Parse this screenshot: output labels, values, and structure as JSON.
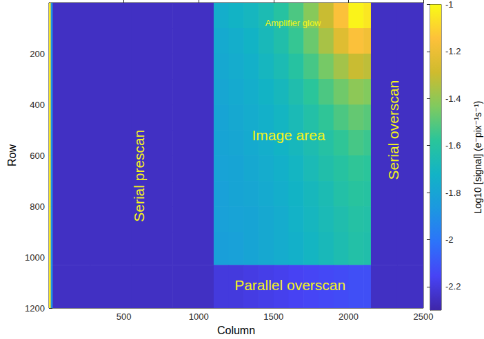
{
  "chart_data": {
    "type": "heatmap",
    "x_label": "Column",
    "y_label": "Row",
    "xlim": [
      0,
      2500
    ],
    "xticks": [
      500,
      1000,
      1500,
      2000,
      2500
    ],
    "ylim": [
      0,
      1200
    ],
    "yticks": [
      200,
      400,
      600,
      800,
      1000,
      1200
    ],
    "x_edges": [
      0,
      12,
      25,
      275,
      550,
      825,
      1100,
      1200,
      1300,
      1400,
      1500,
      1600,
      1700,
      1800,
      1900,
      2000,
      2100,
      2150,
      2325,
      2500
    ],
    "y_edges": [
      0,
      100,
      200,
      300,
      400,
      500,
      600,
      700,
      800,
      900,
      1030,
      1200
    ],
    "z": [
      [
        -1.05,
        -1.9,
        -2.25,
        -2.25,
        -2.25,
        -2.25,
        -1.75,
        -1.72,
        -1.7,
        -1.66,
        -1.6,
        -1.52,
        -1.42,
        -1.3,
        -1.15,
        -1.02,
        -1.05,
        -2.25,
        -2.25
      ],
      [
        -1.05,
        -1.9,
        -2.25,
        -2.25,
        -2.25,
        -2.25,
        -1.77,
        -1.75,
        -1.72,
        -1.68,
        -1.63,
        -1.56,
        -1.47,
        -1.36,
        -1.24,
        -1.15,
        -1.18,
        -2.25,
        -2.25
      ],
      [
        -1.05,
        -1.9,
        -2.25,
        -2.25,
        -2.25,
        -2.25,
        -1.78,
        -1.76,
        -1.74,
        -1.7,
        -1.66,
        -1.6,
        -1.53,
        -1.45,
        -1.37,
        -1.3,
        -1.32,
        -2.25,
        -2.25
      ],
      [
        -1.05,
        -1.9,
        -2.25,
        -2.25,
        -2.25,
        -2.25,
        -1.79,
        -1.77,
        -1.75,
        -1.72,
        -1.69,
        -1.64,
        -1.58,
        -1.52,
        -1.46,
        -1.41,
        -1.43,
        -2.25,
        -2.25
      ],
      [
        -1.05,
        -1.9,
        -2.25,
        -2.25,
        -2.25,
        -2.25,
        -1.8,
        -1.78,
        -1.76,
        -1.74,
        -1.71,
        -1.67,
        -1.62,
        -1.57,
        -1.52,
        -1.48,
        -1.5,
        -2.25,
        -2.25
      ],
      [
        -1.05,
        -1.9,
        -2.25,
        -2.25,
        -2.25,
        -2.25,
        -1.8,
        -1.79,
        -1.77,
        -1.75,
        -1.72,
        -1.69,
        -1.65,
        -1.61,
        -1.57,
        -1.53,
        -1.55,
        -2.25,
        -2.25
      ],
      [
        -1.05,
        -1.9,
        -2.25,
        -2.25,
        -2.25,
        -2.25,
        -1.81,
        -1.8,
        -1.78,
        -1.76,
        -1.74,
        -1.71,
        -1.67,
        -1.63,
        -1.6,
        -1.57,
        -1.58,
        -2.25,
        -2.25
      ],
      [
        -1.05,
        -1.9,
        -2.25,
        -2.25,
        -2.25,
        -2.25,
        -1.82,
        -1.8,
        -1.79,
        -1.77,
        -1.75,
        -1.72,
        -1.69,
        -1.66,
        -1.62,
        -1.59,
        -1.6,
        -2.25,
        -2.25
      ],
      [
        -1.05,
        -1.9,
        -2.25,
        -2.25,
        -2.25,
        -2.25,
        -1.82,
        -1.81,
        -1.8,
        -1.78,
        -1.76,
        -1.73,
        -1.7,
        -1.67,
        -1.64,
        -1.61,
        -1.62,
        -2.25,
        -2.25
      ],
      [
        -1.05,
        -1.9,
        -2.25,
        -2.25,
        -2.25,
        -2.25,
        -1.83,
        -1.82,
        -1.8,
        -1.78,
        -1.76,
        -1.74,
        -1.71,
        -1.68,
        -1.65,
        -1.62,
        -1.63,
        -2.25,
        -2.25
      ],
      [
        -1.05,
        -1.9,
        -2.25,
        -2.25,
        -2.25,
        -2.25,
        -2.2,
        -2.2,
        -2.19,
        -2.18,
        -2.17,
        -2.16,
        -2.15,
        -2.14,
        -2.13,
        -2.12,
        -2.12,
        -2.25,
        -2.25
      ]
    ],
    "colorbar": {
      "label": "Log10 [signal] (e⁻pix⁻¹s⁻¹)",
      "range": [
        -2.3,
        -1
      ],
      "ticks": [
        -1,
        -1.2,
        -1.4,
        -1.6,
        -1.8,
        -2,
        -2.2
      ]
    },
    "annotations": [
      {
        "text": "Amplifier glow",
        "x": 1630,
        "y": 80
      },
      {
        "text": "Serial prescan",
        "x": 600,
        "y": 680,
        "orientation": "vertical"
      },
      {
        "text": "Image area",
        "x": 1600,
        "y": 520
      },
      {
        "text": "Serial overscan",
        "x": 2300,
        "y": 500,
        "orientation": "vertical"
      },
      {
        "text": "Parallel overscan",
        "x": 1610,
        "y": 1110
      }
    ]
  }
}
